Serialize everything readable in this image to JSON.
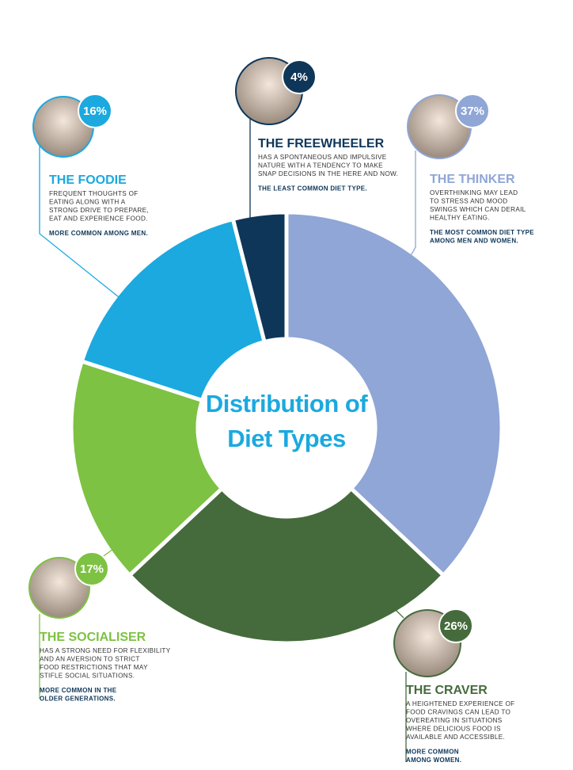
{
  "chart_data": {
    "type": "donut",
    "title": "Distribution of Diet Types",
    "categories": [
      "THE THINKER",
      "THE CRAVER",
      "THE SOCIALISER",
      "THE FOODIE",
      "THE FREEWHEELER"
    ],
    "values": [
      37,
      26,
      17,
      16,
      4
    ],
    "value_labels": [
      "37%",
      "26%",
      "17%",
      "16%",
      "4%"
    ],
    "colors": [
      "#8fa6d6",
      "#456b3c",
      "#7dc243",
      "#1ba9df",
      "#0e3659"
    ],
    "descriptions": [
      [
        "OVERTHINKING MAY LEAD",
        "TO STRESS AND MOOD",
        "SWINGS WHICH CAN DERAIL",
        "HEALTHY EATING."
      ],
      [
        "A HEIGHTENED EXPERIENCE OF",
        "FOOD CRAVINGS CAN LEAD TO",
        "OVEREATING IN SITUATIONS",
        "WHERE DELICIOUS FOOD IS",
        "AVAILABLE AND ACCESSIBLE."
      ],
      [
        "HAS A STRONG NEED FOR FLEXIBILITY",
        "AND AN AVERSION TO STRICT",
        "FOOD RESTRICTIONS THAT MAY",
        "STIFLE SOCIAL SITUATIONS."
      ],
      [
        "FREQUENT THOUGHTS OF",
        "EATING ALONG WITH A",
        "STRONG DRIVE TO PREPARE,",
        "EAT AND EXPERIENCE FOOD."
      ],
      [
        "HAS A SPONTANEOUS AND IMPULSIVE",
        "NATURE WITH A TENDENCY TO MAKE",
        "SNAP DECISIONS IN THE HERE AND NOW."
      ]
    ],
    "notes": [
      [
        "THE MOST COMMON DIET TYPE",
        "AMONG MEN AND WOMEN."
      ],
      [
        "MORE COMMON",
        "AMONG WOMEN."
      ],
      [
        "MORE COMMON IN THE",
        "OLDER GENERATIONS."
      ],
      [
        "MORE COMMON AMONG MEN."
      ],
      [
        "THE LEAST COMMON DIET TYPE."
      ]
    ]
  }
}
